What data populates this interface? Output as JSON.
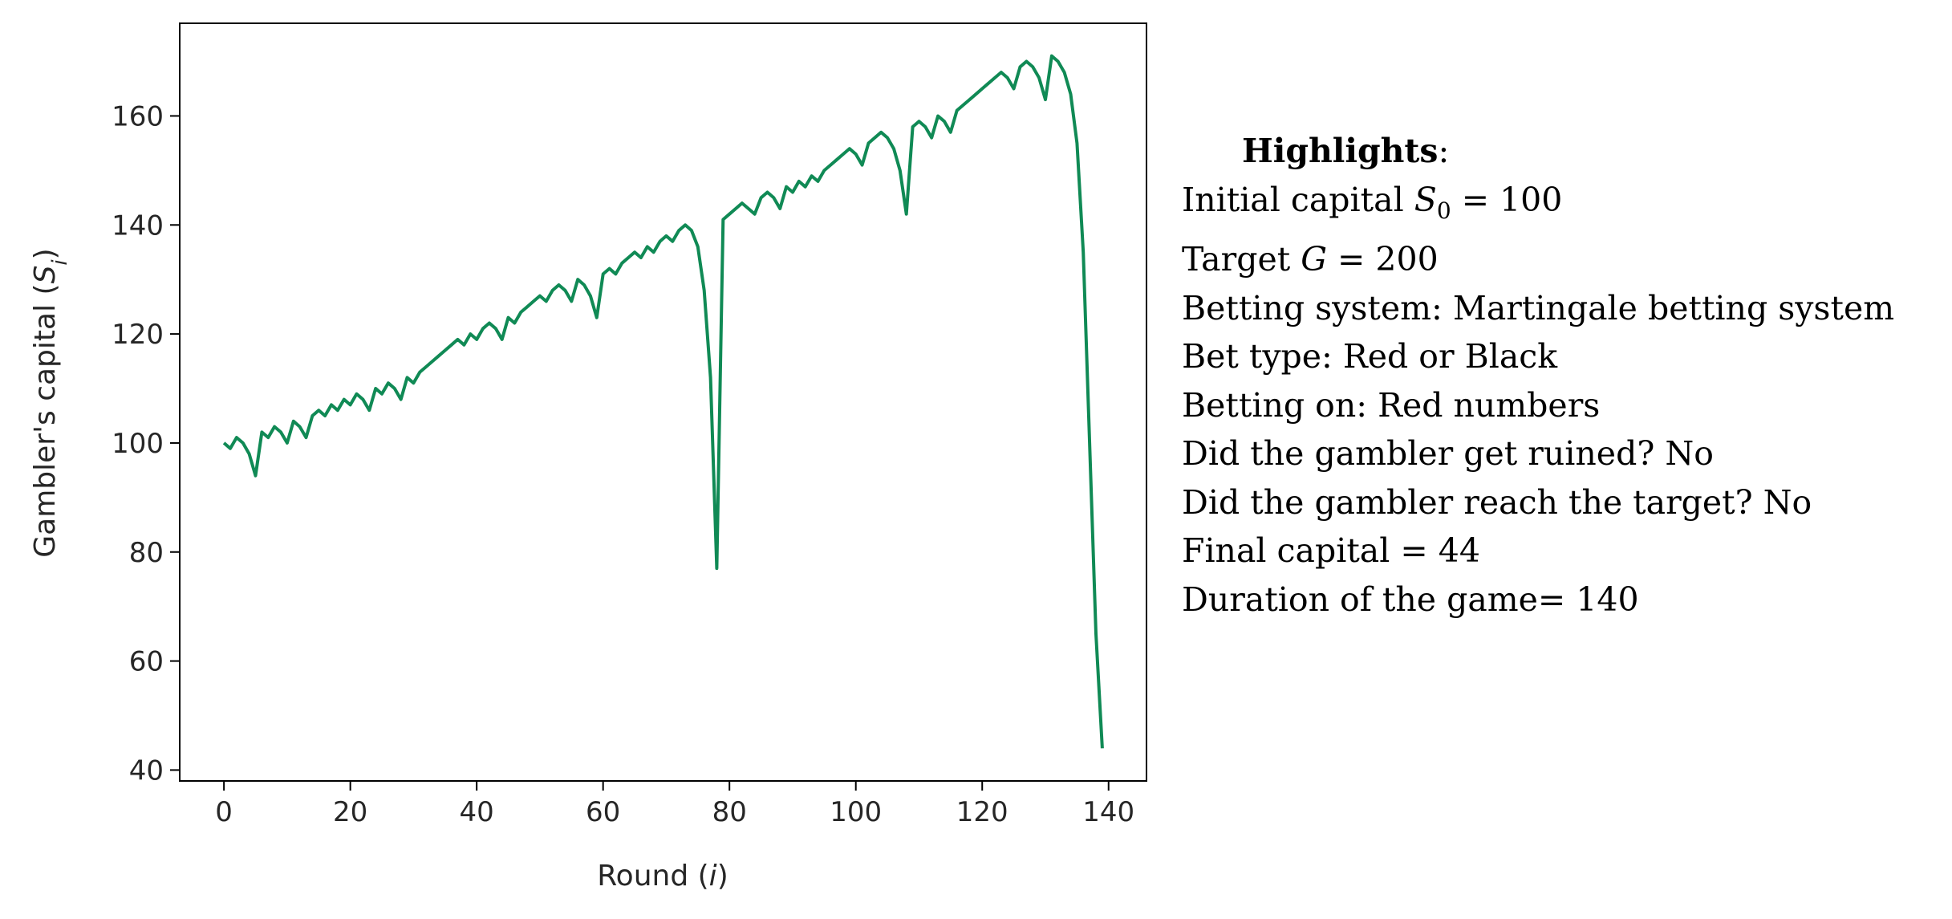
{
  "chart_data": {
    "type": "line",
    "xlabel": "Round (i)",
    "ylabel": "Gambler's capital (S_i)",
    "xlim": [
      -7,
      146
    ],
    "ylim": [
      38,
      177
    ],
    "xticks": [
      0,
      20,
      40,
      60,
      80,
      100,
      120,
      140
    ],
    "yticks": [
      40,
      60,
      80,
      100,
      120,
      140,
      160
    ],
    "line_color": "#108a55",
    "grid": false,
    "series": [
      {
        "x": [
          0,
          1,
          2,
          3,
          4,
          5,
          6,
          7,
          8,
          9,
          10,
          11,
          12,
          13,
          14,
          15,
          16,
          17,
          18,
          19,
          20,
          21,
          22,
          23,
          24,
          25,
          26,
          27,
          28,
          29,
          30,
          31,
          32,
          33,
          34,
          35,
          36,
          37,
          38,
          39,
          40,
          41,
          42,
          43,
          44,
          45,
          46,
          47,
          48,
          49,
          50,
          51,
          52,
          53,
          54,
          55,
          56,
          57,
          58,
          59,
          60,
          61,
          62,
          63,
          64,
          65,
          66,
          67,
          68,
          69,
          70,
          71,
          72,
          73,
          74,
          75,
          76,
          77,
          78,
          79,
          80,
          81,
          82,
          83,
          84,
          85,
          86,
          87,
          88,
          89,
          90,
          91,
          92,
          93,
          94,
          95,
          96,
          97,
          98,
          99,
          100,
          101,
          102,
          103,
          104,
          105,
          106,
          107,
          108,
          109,
          110,
          111,
          112,
          113,
          114,
          115,
          116,
          117,
          118,
          119,
          120,
          121,
          122,
          123,
          124,
          125,
          126,
          127,
          128,
          129,
          130,
          131,
          132,
          133,
          134,
          135,
          136,
          137,
          138,
          139
        ],
        "y": [
          100,
          99,
          101,
          100,
          98,
          94,
          102,
          101,
          103,
          102,
          100,
          104,
          103,
          101,
          105,
          106,
          105,
          107,
          106,
          108,
          107,
          109,
          108,
          106,
          110,
          109,
          111,
          110,
          108,
          112,
          111,
          113,
          114,
          115,
          116,
          117,
          118,
          119,
          118,
          120,
          119,
          121,
          122,
          121,
          119,
          123,
          122,
          124,
          125,
          126,
          127,
          126,
          128,
          129,
          128,
          126,
          130,
          129,
          127,
          123,
          131,
          132,
          131,
          133,
          134,
          135,
          134,
          136,
          135,
          137,
          138,
          137,
          139,
          140,
          139,
          136,
          128,
          112,
          77,
          141,
          142,
          143,
          144,
          143,
          142,
          145,
          146,
          145,
          143,
          147,
          146,
          148,
          147,
          149,
          148,
          150,
          151,
          152,
          153,
          154,
          153,
          151,
          155,
          156,
          157,
          156,
          154,
          150,
          142,
          158,
          159,
          158,
          156,
          160,
          159,
          157,
          161,
          162,
          163,
          164,
          165,
          166,
          167,
          168,
          167,
          165,
          169,
          170,
          169,
          167,
          163,
          171,
          170,
          168,
          164,
          155,
          135,
          100,
          65,
          44
        ]
      }
    ],
    "highlights": {
      "title": "Highlights",
      "title_suffix": ":",
      "initial_capital_prefix": "Initial capital ",
      "initial_capital_symbol": "S",
      "initial_capital_subscript": "0",
      "initial_capital_suffix": " = 100",
      "target_prefix": "Target ",
      "target_symbol": "G",
      "target_suffix": " = 200",
      "betting_system": "Betting system: Martingale betting system",
      "bet_type": "Bet type: Red or Black",
      "betting_on": "Betting on: Red numbers",
      "ruined": "Did the gambler get ruined? No",
      "reached_target": "Did the gambler reach the target? No",
      "final_capital": "Final capital = 44",
      "duration": "Duration of the game= 140"
    }
  },
  "labels": {
    "xlabel_main": "Round (",
    "xlabel_var": "i",
    "xlabel_close": ")",
    "ylabel_main": "Gambler's capital (",
    "ylabel_var": "S",
    "ylabel_sub": "i",
    "ylabel_close": ")"
  }
}
